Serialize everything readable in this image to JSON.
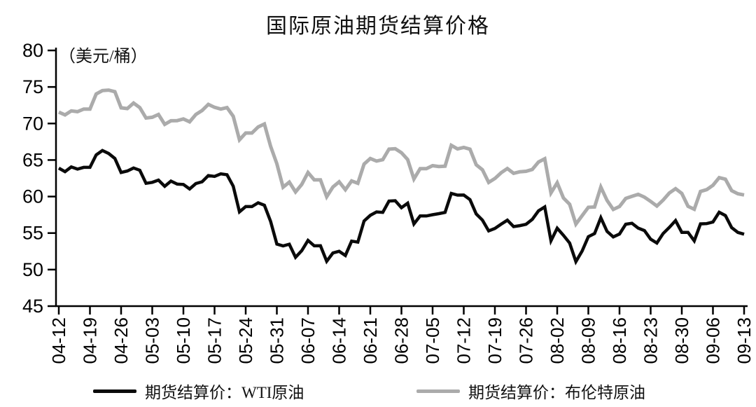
{
  "chart": {
    "title": "国际原油期货结算价格",
    "unit_label": "（美元/桶）",
    "legend": [
      {
        "label": "期货结算价：WTI原油",
        "color": "#0a0a0a"
      },
      {
        "label": "期货结算价：布伦特原油",
        "color": "#ababab"
      }
    ]
  },
  "chart_data": {
    "type": "line",
    "title": "国际原油期货结算价格",
    "ylabel": "（美元/桶）",
    "ylim": [
      45,
      80
    ],
    "y_ticks": [
      45,
      50,
      55,
      60,
      65,
      70,
      75,
      80
    ],
    "grid": false,
    "legend_position": "bottom",
    "x_tick_labels": [
      "04-12",
      "04-19",
      "04-26",
      "05-03",
      "05-10",
      "05-17",
      "05-24",
      "05-31",
      "06-07",
      "06-14",
      "06-21",
      "06-28",
      "07-05",
      "07-12",
      "07-19",
      "07-26",
      "08-02",
      "08-09",
      "08-16",
      "08-23",
      "08-30",
      "09-06",
      "09-13"
    ],
    "x_dates": [
      "04-12",
      "04-15",
      "04-16",
      "04-17",
      "04-18",
      "04-19",
      "04-22",
      "04-23",
      "04-24",
      "04-25",
      "04-26",
      "04-29",
      "04-30",
      "05-01",
      "05-02",
      "05-03",
      "05-06",
      "05-07",
      "05-08",
      "05-09",
      "05-10",
      "05-13",
      "05-14",
      "05-15",
      "05-16",
      "05-17",
      "05-20",
      "05-21",
      "05-22",
      "05-23",
      "05-24",
      "05-27",
      "05-28",
      "05-29",
      "05-30",
      "05-31",
      "06-03",
      "06-04",
      "06-05",
      "06-06",
      "06-07",
      "06-10",
      "06-11",
      "06-12",
      "06-13",
      "06-14",
      "06-17",
      "06-18",
      "06-19",
      "06-20",
      "06-21",
      "06-24",
      "06-25",
      "06-26",
      "06-27",
      "06-28",
      "07-01",
      "07-02",
      "07-03",
      "07-04",
      "07-05",
      "07-08",
      "07-09",
      "07-10",
      "07-11",
      "07-12",
      "07-15",
      "07-16",
      "07-17",
      "07-18",
      "07-19",
      "07-22",
      "07-23",
      "07-24",
      "07-25",
      "07-26",
      "07-29",
      "07-30",
      "07-31",
      "08-01",
      "08-02",
      "08-05",
      "08-06",
      "08-07",
      "08-08",
      "08-09",
      "08-12",
      "08-13",
      "08-14",
      "08-15",
      "08-16",
      "08-19",
      "08-20",
      "08-21",
      "08-22",
      "08-23",
      "08-26",
      "08-27",
      "08-28",
      "08-29",
      "08-30",
      "09-02",
      "09-03",
      "09-04",
      "09-05",
      "09-06",
      "09-09",
      "09-10",
      "09-11",
      "09-12",
      "09-13"
    ],
    "series": [
      {
        "name": "期货结算价：WTI原油",
        "color": "#0a0a0a",
        "stroke_width": 4.5,
        "values": [
          63.89,
          63.4,
          64.05,
          63.76,
          64.0,
          64.0,
          65.7,
          66.3,
          65.89,
          65.21,
          63.3,
          63.5,
          63.91,
          63.6,
          61.81,
          61.94,
          62.25,
          61.4,
          62.12,
          61.7,
          61.66,
          61.04,
          61.78,
          62.02,
          62.87,
          62.76,
          63.1,
          62.99,
          61.42,
          57.91,
          58.63,
          58.63,
          59.14,
          58.81,
          56.59,
          53.5,
          53.25,
          53.48,
          51.68,
          52.59,
          53.99,
          53.26,
          53.27,
          51.14,
          52.28,
          52.51,
          51.93,
          53.9,
          53.76,
          56.65,
          57.43,
          57.9,
          57.83,
          59.38,
          59.43,
          58.47,
          59.09,
          56.25,
          57.34,
          57.34,
          57.51,
          57.66,
          57.83,
          60.43,
          60.2,
          60.21,
          59.58,
          57.62,
          56.78,
          55.3,
          55.63,
          56.22,
          56.77,
          55.88,
          56.02,
          56.2,
          56.87,
          58.05,
          58.58,
          53.95,
          55.66,
          54.69,
          53.63,
          51.09,
          52.54,
          54.5,
          54.93,
          57.1,
          55.23,
          54.47,
          54.87,
          56.21,
          56.34,
          55.68,
          55.35,
          54.17,
          53.64,
          54.93,
          55.78,
          56.71,
          55.1,
          55.1,
          53.94,
          56.26,
          56.3,
          56.52,
          57.85,
          57.4,
          55.75,
          55.09,
          54.85
        ]
      },
      {
        "name": "期货结算价：布伦特原油",
        "color": "#ababab",
        "stroke_width": 5,
        "values": [
          71.55,
          71.18,
          71.72,
          71.62,
          71.97,
          71.97,
          74.04,
          74.51,
          74.57,
          74.35,
          72.15,
          72.04,
          72.8,
          72.18,
          70.75,
          70.85,
          71.24,
          69.88,
          70.37,
          70.39,
          70.62,
          70.23,
          71.24,
          71.77,
          72.62,
          72.21,
          71.97,
          72.18,
          70.99,
          67.76,
          68.69,
          68.69,
          69.53,
          69.93,
          66.87,
          64.49,
          61.28,
          61.97,
          60.63,
          61.67,
          63.29,
          62.29,
          62.29,
          59.97,
          61.31,
          62.01,
          60.94,
          62.14,
          61.82,
          64.45,
          65.2,
          64.86,
          65.05,
          66.49,
          66.55,
          66.0,
          65.06,
          62.4,
          63.82,
          63.82,
          64.23,
          64.11,
          64.16,
          67.01,
          66.52,
          66.72,
          66.48,
          64.35,
          63.66,
          61.93,
          62.47,
          63.26,
          63.83,
          63.18,
          63.39,
          63.46,
          63.71,
          64.72,
          65.17,
          60.5,
          61.89,
          59.81,
          58.94,
          56.23,
          57.38,
          58.53,
          58.57,
          61.3,
          59.48,
          58.23,
          58.64,
          59.74,
          60.03,
          60.3,
          59.92,
          59.34,
          58.7,
          59.51,
          60.49,
          61.08,
          60.43,
          58.66,
          58.26,
          60.7,
          60.95,
          61.54,
          62.59,
          62.38,
          60.81,
          60.38,
          60.22
        ]
      }
    ]
  }
}
